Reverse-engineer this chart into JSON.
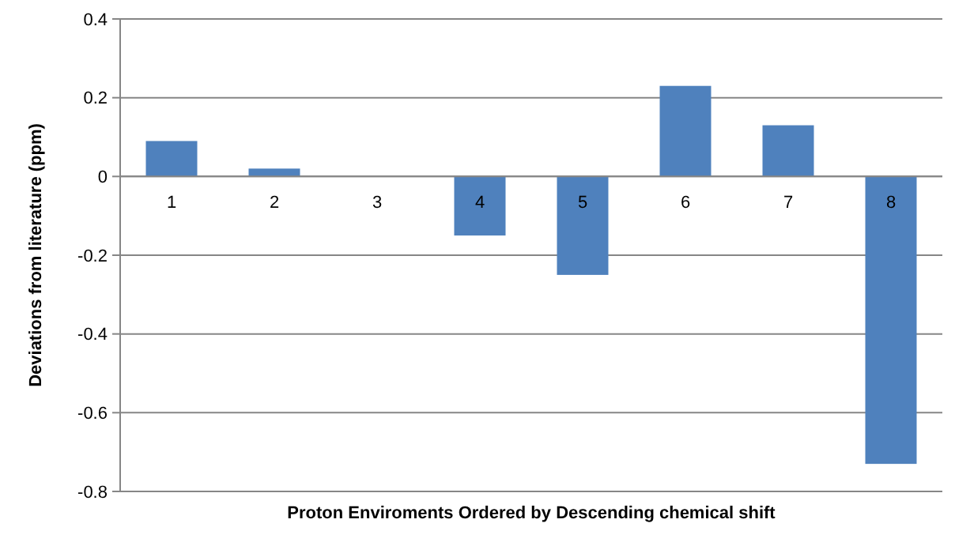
{
  "chart_data": {
    "type": "bar",
    "xlabel": "Proton Enviroments Ordered by Descending chemical shift",
    "ylabel": "Deviations from literature (ppm)",
    "categories": [
      "1",
      "2",
      "3",
      "4",
      "5",
      "6",
      "7",
      "8"
    ],
    "values": [
      0.09,
      0.02,
      0,
      -0.15,
      -0.25,
      0.23,
      0.13,
      -0.73
    ],
    "color": "#4f81bd",
    "ylim": [
      -0.8,
      0.4
    ],
    "yticks": [
      -0.8,
      -0.6,
      -0.4,
      -0.2,
      0,
      0.2,
      0.4
    ],
    "grid": "y"
  }
}
